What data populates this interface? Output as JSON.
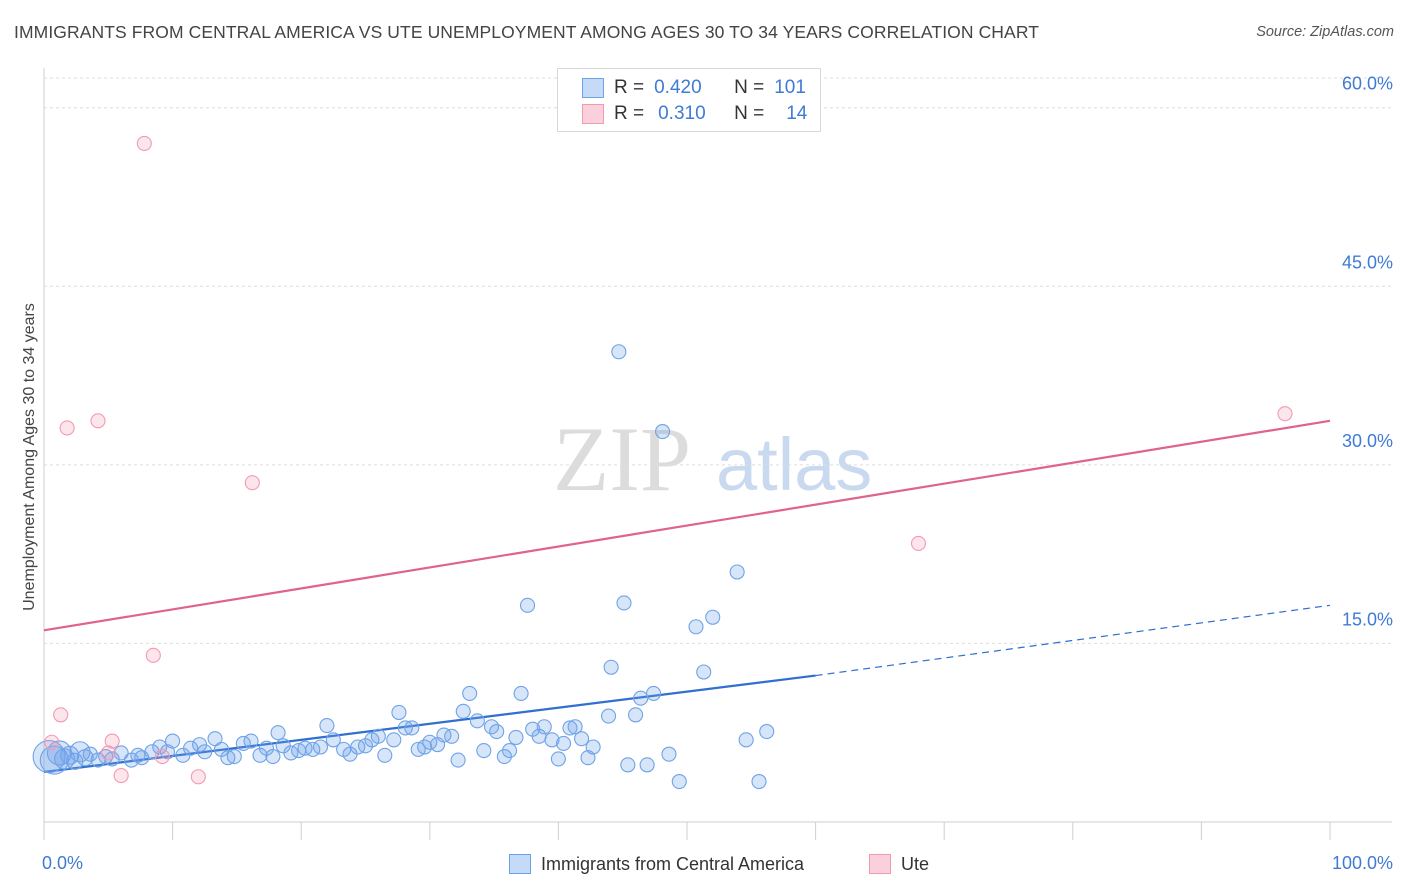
{
  "header": {
    "title": "IMMIGRANTS FROM CENTRAL AMERICA VS UTE UNEMPLOYMENT AMONG AGES 30 TO 34 YEARS CORRELATION CHART",
    "source": "Source: ZipAtlas.com"
  },
  "watermark": {
    "part1": "ZIP",
    "part2": "atlas"
  },
  "legend_stats": [
    {
      "r_label": "R =",
      "r_value": "0.420",
      "n_label": "N =",
      "n_value": "101"
    },
    {
      "r_label": "R =",
      "r_value": "0.310",
      "n_label": "N =",
      "n_value": "14"
    }
  ],
  "chart_data": {
    "type": "scatter",
    "title": "IMMIGRANTS FROM CENTRAL AMERICA VS UTE UNEMPLOYMENT AMONG AGES 30 TO 34 YEARS CORRELATION CHART",
    "xlabel": "",
    "ylabel": "Unemployment Among Ages 30 to 34 years",
    "xlim": [
      0,
      100
    ],
    "ylim": [
      0,
      63
    ],
    "x_tick_labels": [
      "0.0%",
      "100.0%"
    ],
    "y_ticks": [
      15,
      30,
      45,
      60
    ],
    "y_tick_labels": [
      "15.0%",
      "30.0%",
      "45.0%",
      "60.0%"
    ],
    "grid": true,
    "legend_placement": "bottom-center",
    "series": [
      {
        "name": "Immigrants from Central America",
        "color": "#6fa3e8",
        "line_color": "#2f6fd0",
        "trend": {
          "x": [
            0,
            60
          ],
          "y": [
            4.2,
            12.3
          ]
        },
        "trend_extension": {
          "x": [
            60,
            100
          ],
          "y": [
            12.3,
            18.2
          ]
        },
        "points": [
          [
            0.4,
            5.5,
            16
          ],
          [
            0.8,
            5.2,
            14
          ],
          [
            1.2,
            5.8,
            12
          ],
          [
            1.6,
            5.3,
            10
          ],
          [
            2.0,
            5.6,
            9
          ],
          [
            2.4,
            5.1,
            8
          ],
          [
            2.8,
            5.9,
            10
          ],
          [
            3.2,
            5.4,
            8
          ],
          [
            3.6,
            5.7,
            7
          ],
          [
            4.2,
            5.2,
            7
          ],
          [
            4.8,
            5.5,
            7
          ],
          [
            5.3,
            5.3,
            7
          ],
          [
            6.0,
            5.8,
            7
          ],
          [
            6.8,
            5.2,
            7
          ],
          [
            7.3,
            5.6,
            7
          ],
          [
            7.6,
            5.4,
            7
          ],
          [
            8.4,
            5.9,
            7
          ],
          [
            9.0,
            6.3,
            7
          ],
          [
            9.6,
            5.9,
            7
          ],
          [
            10.0,
            6.8,
            7
          ],
          [
            10.8,
            5.6,
            7
          ],
          [
            11.4,
            6.2,
            7
          ],
          [
            12.1,
            6.5,
            7
          ],
          [
            12.5,
            5.9,
            7
          ],
          [
            13.3,
            7.0,
            7
          ],
          [
            13.8,
            6.1,
            7
          ],
          [
            14.3,
            5.4,
            7
          ],
          [
            14.8,
            5.5,
            7
          ],
          [
            15.5,
            6.6,
            7
          ],
          [
            16.1,
            6.8,
            7
          ],
          [
            16.8,
            5.6,
            7
          ],
          [
            17.3,
            6.2,
            7
          ],
          [
            17.8,
            5.5,
            7
          ],
          [
            18.2,
            7.5,
            7
          ],
          [
            18.6,
            6.4,
            7
          ],
          [
            19.2,
            5.8,
            7
          ],
          [
            19.8,
            6.0,
            7
          ],
          [
            20.3,
            6.2,
            7
          ],
          [
            20.9,
            6.1,
            7
          ],
          [
            21.5,
            6.3,
            7
          ],
          [
            22.0,
            8.1,
            7
          ],
          [
            22.5,
            6.9,
            7
          ],
          [
            23.3,
            6.1,
            7
          ],
          [
            23.8,
            5.7,
            7
          ],
          [
            24.4,
            6.3,
            7
          ],
          [
            25.0,
            6.4,
            7
          ],
          [
            25.5,
            6.9,
            7
          ],
          [
            26.0,
            7.2,
            7
          ],
          [
            26.5,
            5.6,
            7
          ],
          [
            27.2,
            6.9,
            7
          ],
          [
            27.6,
            9.2,
            7
          ],
          [
            28.1,
            7.9,
            7
          ],
          [
            28.6,
            7.9,
            7
          ],
          [
            29.1,
            6.1,
            7
          ],
          [
            29.6,
            6.3,
            7
          ],
          [
            30.0,
            6.7,
            7
          ],
          [
            30.6,
            6.5,
            7
          ],
          [
            31.1,
            7.3,
            7
          ],
          [
            31.7,
            7.2,
            7
          ],
          [
            32.2,
            5.2,
            7
          ],
          [
            32.6,
            9.3,
            7
          ],
          [
            33.1,
            10.8,
            7
          ],
          [
            33.7,
            8.5,
            7
          ],
          [
            34.2,
            6.0,
            7
          ],
          [
            34.8,
            8.0,
            7
          ],
          [
            35.2,
            7.6,
            7
          ],
          [
            35.8,
            5.5,
            7
          ],
          [
            36.2,
            6.0,
            7
          ],
          [
            36.7,
            7.1,
            7
          ],
          [
            37.1,
            10.8,
            7
          ],
          [
            37.6,
            18.2,
            7
          ],
          [
            38.0,
            7.8,
            7
          ],
          [
            38.5,
            7.2,
            7
          ],
          [
            38.9,
            8.0,
            7
          ],
          [
            39.5,
            6.9,
            7
          ],
          [
            40.0,
            5.3,
            7
          ],
          [
            40.4,
            6.6,
            7
          ],
          [
            40.9,
            7.9,
            7
          ],
          [
            41.3,
            8.0,
            7
          ],
          [
            41.8,
            7.0,
            7
          ],
          [
            42.3,
            5.4,
            7
          ],
          [
            42.7,
            6.3,
            7
          ],
          [
            43.9,
            8.9,
            7
          ],
          [
            44.1,
            13.0,
            7
          ],
          [
            44.7,
            39.5,
            7
          ],
          [
            45.1,
            18.4,
            7
          ],
          [
            45.4,
            4.8,
            7
          ],
          [
            46.0,
            9.0,
            7
          ],
          [
            46.4,
            10.4,
            7
          ],
          [
            46.9,
            4.8,
            7
          ],
          [
            47.4,
            10.8,
            7
          ],
          [
            48.1,
            32.8,
            7
          ],
          [
            48.6,
            5.7,
            7
          ],
          [
            49.4,
            3.4,
            7
          ],
          [
            50.7,
            16.4,
            7
          ],
          [
            51.3,
            12.6,
            7
          ],
          [
            52.0,
            17.2,
            7
          ],
          [
            53.9,
            21.0,
            7
          ],
          [
            54.6,
            6.9,
            7
          ],
          [
            55.6,
            3.4,
            7
          ],
          [
            56.2,
            7.6,
            7
          ]
        ]
      },
      {
        "name": "Ute",
        "color": "#f29ab4",
        "line_color": "#e0628e",
        "trend": {
          "x": [
            0,
            100
          ],
          "y": [
            16.1,
            33.7
          ]
        },
        "points": [
          [
            0.6,
            6.7,
            7
          ],
          [
            1.3,
            9.0,
            7
          ],
          [
            1.8,
            33.1,
            7
          ],
          [
            4.2,
            33.7,
            7
          ],
          [
            5.0,
            5.8,
            7
          ],
          [
            5.3,
            6.8,
            7
          ],
          [
            6.0,
            3.9,
            7
          ],
          [
            7.8,
            57.0,
            7
          ],
          [
            8.5,
            14.0,
            7
          ],
          [
            9.2,
            5.5,
            7
          ],
          [
            12.0,
            3.8,
            7
          ],
          [
            16.2,
            28.5,
            7
          ],
          [
            68.0,
            23.4,
            7
          ],
          [
            96.5,
            34.3,
            7
          ]
        ]
      }
    ]
  }
}
